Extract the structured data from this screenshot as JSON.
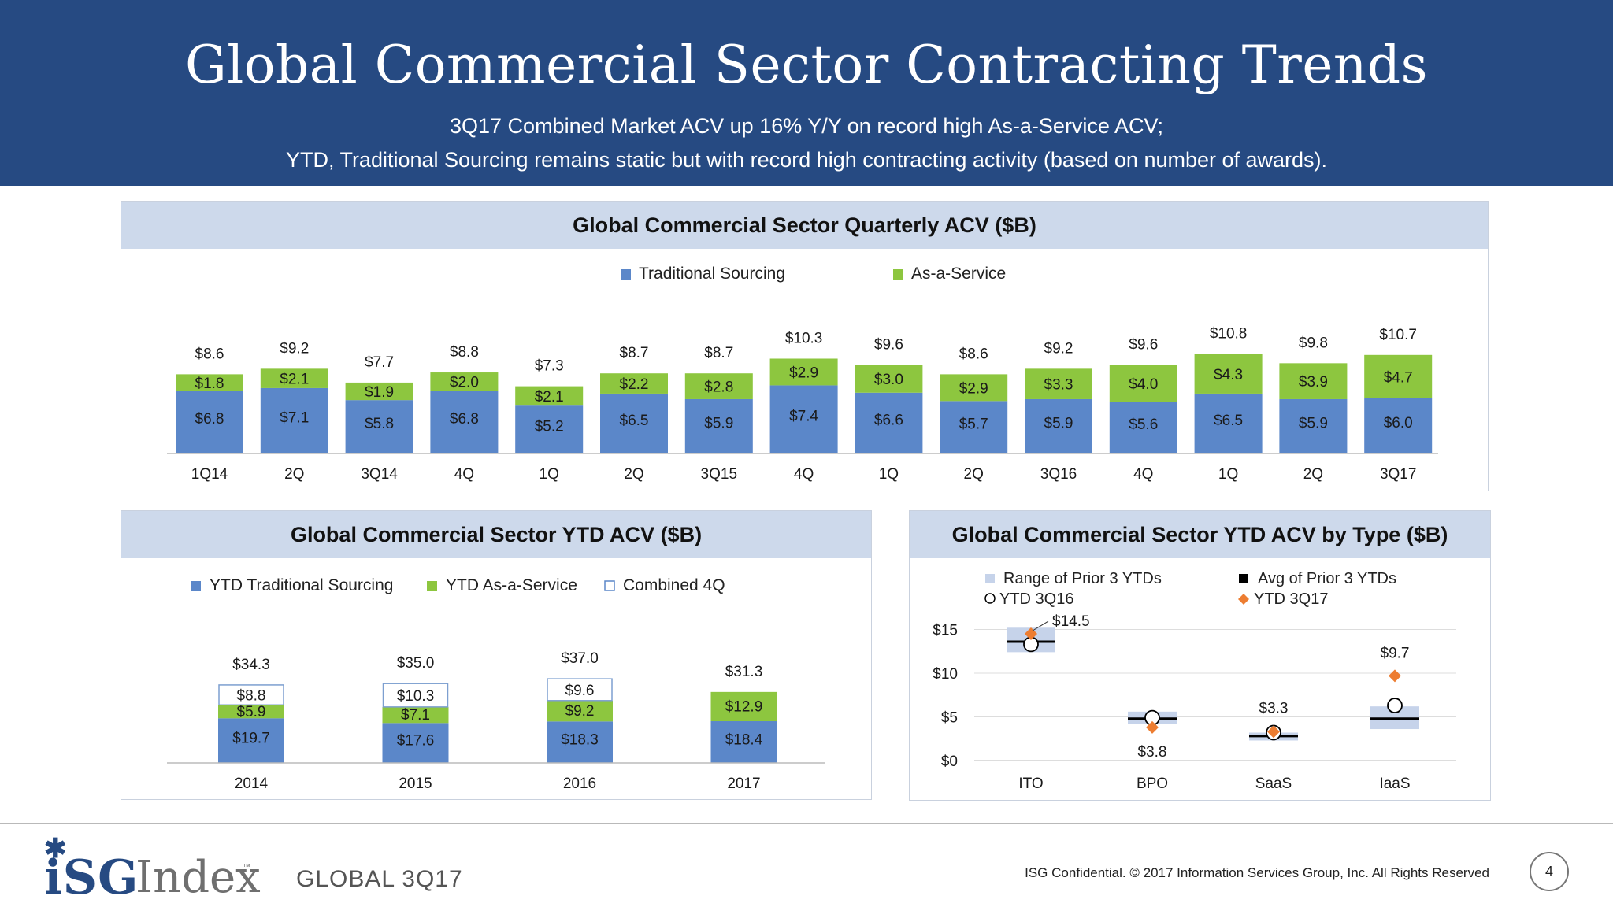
{
  "header": {
    "title": "Global Commercial Sector Contracting Trends",
    "subtitle1": "3Q17 Combined Market ACV up 16% Y/Y on record high As-a-Service ACV;",
    "subtitle2": "YTD, Traditional Sourcing remains static but with record high contracting activity (based on number of awards)."
  },
  "colors": {
    "traditional": "#5b87c9",
    "aas": "#8dc63f",
    "header_bg": "#264a82",
    "panel_head": "#cdd9eb",
    "range_box": "#c6d3ea",
    "ytd3q17": "#ed7d31"
  },
  "chart_data": [
    {
      "id": "quarterly",
      "type": "bar",
      "stacked": true,
      "title": "Global Commercial Sector Quarterly ACV ($B)",
      "categories": [
        "1Q14",
        "2Q",
        "3Q14",
        "4Q",
        "1Q",
        "2Q",
        "3Q15",
        "4Q",
        "1Q",
        "2Q",
        "3Q16",
        "4Q",
        "1Q",
        "2Q",
        "3Q17"
      ],
      "series": [
        {
          "name": "Traditional Sourcing",
          "values": [
            6.8,
            7.1,
            5.8,
            6.8,
            5.2,
            6.5,
            5.9,
            7.4,
            6.6,
            5.7,
            5.9,
            5.6,
            6.5,
            5.9,
            6.0
          ],
          "labels": [
            "$6.8",
            "$7.1",
            "$5.8",
            "$6.8",
            "$5.2",
            "$6.5",
            "$5.9",
            "$7.4",
            "$6.6",
            "$5.7",
            "$5.9",
            "$5.6",
            "$6.5",
            "$5.9",
            "$6.0"
          ]
        },
        {
          "name": "As-a-Service",
          "values": [
            1.8,
            2.1,
            1.9,
            2.0,
            2.1,
            2.2,
            2.8,
            2.9,
            3.0,
            2.9,
            3.3,
            4.0,
            4.3,
            3.9,
            4.7
          ],
          "labels": [
            "$1.8",
            "$2.1",
            "$1.9",
            "$2.0",
            "$2.1",
            "$2.2",
            "$2.8",
            "$2.9",
            "$3.0",
            "$2.9",
            "$3.3",
            "$4.0",
            "$4.3",
            "$3.9",
            "$4.7"
          ]
        }
      ],
      "totals": [
        8.6,
        9.2,
        7.7,
        8.8,
        7.3,
        8.7,
        8.7,
        10.3,
        9.6,
        8.6,
        9.2,
        9.6,
        10.8,
        9.8,
        10.7
      ],
      "total_labels": [
        "$8.6",
        "$9.2",
        "$7.7",
        "$8.8",
        "$7.3",
        "$8.7",
        "$8.7",
        "$10.3",
        "$9.6",
        "$8.6",
        "$9.2",
        "$9.6",
        "$10.8",
        "$9.8",
        "$10.7"
      ],
      "ylim": [
        0,
        12
      ],
      "legend_position": "top-center",
      "grid": false
    },
    {
      "id": "ytd",
      "type": "bar",
      "stacked": true,
      "title": "Global Commercial Sector YTD ACV ($B)",
      "categories": [
        "2014",
        "2015",
        "2016",
        "2017"
      ],
      "series": [
        {
          "name": "YTD Traditional Sourcing",
          "values": [
            19.7,
            17.6,
            18.3,
            18.4
          ],
          "labels": [
            "$19.7",
            "$17.6",
            "$18.3",
            "$18.4"
          ]
        },
        {
          "name": "YTD As-a-Service",
          "values": [
            5.9,
            7.1,
            9.2,
            12.9
          ],
          "labels": [
            "$5.9",
            "$7.1",
            "$9.2",
            "$12.9"
          ]
        },
        {
          "name": "Combined 4Q",
          "values": [
            8.8,
            10.3,
            9.6,
            0
          ],
          "labels": [
            "$8.8",
            "$10.3",
            "$9.6",
            ""
          ]
        }
      ],
      "totals": [
        34.3,
        35.0,
        37.0,
        31.3
      ],
      "total_labels": [
        "$34.3",
        "$35.0",
        "$37.0",
        "$31.3"
      ],
      "ylim": [
        0,
        42
      ],
      "legend_position": "top-center",
      "grid": false
    },
    {
      "id": "bytype",
      "type": "scatter",
      "title": "Global Commercial Sector YTD ACV by Type ($B)",
      "categories": [
        "ITO",
        "BPO",
        "SaaS",
        "IaaS"
      ],
      "range_low": [
        12.4,
        4.2,
        2.3,
        3.6
      ],
      "range_high": [
        15.2,
        5.6,
        3.2,
        6.2
      ],
      "avg_prior3": [
        13.6,
        4.8,
        2.8,
        4.8
      ],
      "ytd_3q16": [
        13.3,
        4.9,
        3.2,
        6.3
      ],
      "ytd_3q17": [
        14.5,
        3.8,
        3.3,
        9.7
      ],
      "ytd_3q17_labels": [
        "$14.5",
        "$3.8",
        "$3.3",
        "$9.7"
      ],
      "legend": [
        "Range of Prior 3 YTDs",
        "Avg of Prior 3 YTDs",
        "YTD 3Q16",
        "YTD 3Q17"
      ],
      "y_ticks": [
        0,
        5,
        10,
        15
      ],
      "y_tick_labels": [
        "$0",
        "$5",
        "$10",
        "$15"
      ],
      "ylim": [
        0,
        15
      ],
      "grid": true,
      "legend_position": "top"
    }
  ],
  "footer": {
    "logo_main": "iSG",
    "logo_sub": "Index",
    "logo_tm": "™",
    "region": "GLOBAL 3Q17",
    "copyright": "ISG Confidential. © 2017 Information Services Group, Inc.  All Rights Reserved",
    "page": "4"
  }
}
